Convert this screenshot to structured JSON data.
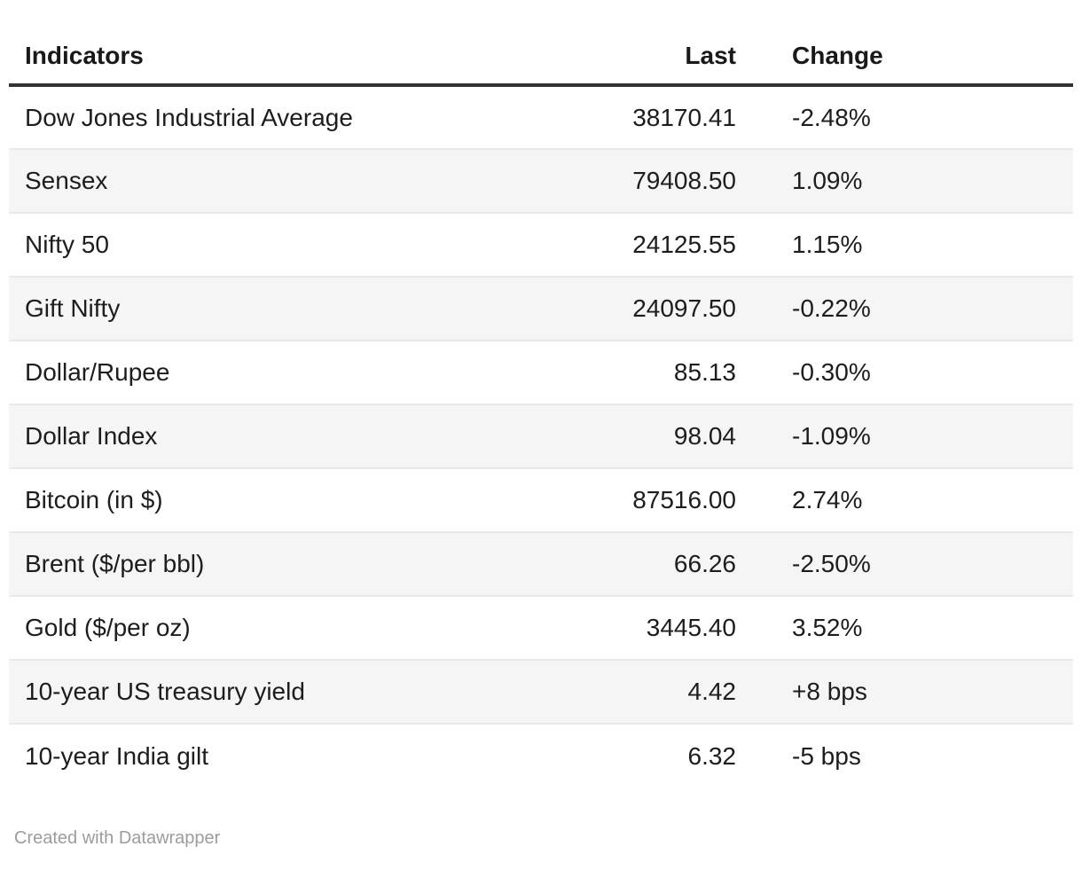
{
  "chart_data": {
    "type": "table",
    "columns": [
      "Indicators",
      "Last",
      "Change"
    ],
    "rows": [
      [
        "Dow Jones Industrial Average",
        "38170.41",
        "-2.48%"
      ],
      [
        "Sensex",
        "79408.50",
        "1.09%"
      ],
      [
        "Nifty 50",
        "24125.55",
        "1.15%"
      ],
      [
        "Gift Nifty",
        "24097.50",
        "-0.22%"
      ],
      [
        "Dollar/Rupee",
        "85.13",
        "-0.30%"
      ],
      [
        "Dollar Index",
        "98.04",
        "-1.09%"
      ],
      [
        "Bitcoin (in $)",
        "87516.00",
        "2.74%"
      ],
      [
        "Brent ($/per bbl)",
        "66.26",
        "-2.50%"
      ],
      [
        "Gold ($/per oz)",
        "3445.40",
        "3.52%"
      ],
      [
        "10-year US treasury yield",
        "4.42",
        "+8 bps"
      ],
      [
        "10-year India gilt",
        "6.32",
        "-5 bps"
      ]
    ],
    "layout": {
      "zebra_striping": true,
      "striped_row_color": "#f5f5f5",
      "row_divider_color": "#e9e9e9",
      "header_rule_color": "#333333",
      "last_column_align": "right",
      "change_column_align": "left",
      "grid": "horizontal-only",
      "legend": "none"
    }
  },
  "footer": {
    "attribution": "Created with Datawrapper"
  }
}
